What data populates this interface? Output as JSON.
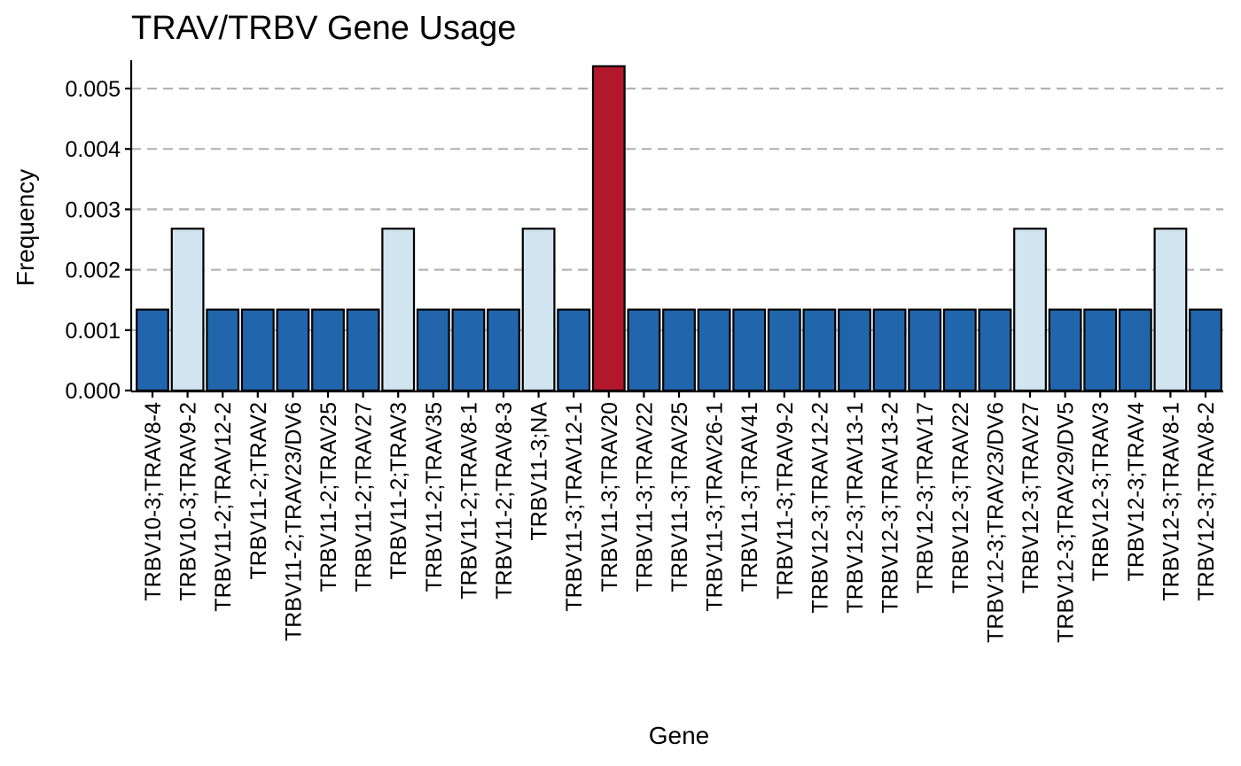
{
  "chart_data": {
    "type": "bar",
    "title": "TRAV/TRBV Gene Usage",
    "xlabel": "Gene",
    "ylabel": "Frequency",
    "ylim": [
      0,
      0.0054
    ],
    "yticks": [
      "0.000",
      "0.001",
      "0.002",
      "0.003",
      "0.004",
      "0.005"
    ],
    "grid": "horizontal dashed",
    "categories": [
      "TRBV10-3;TRAV8-4",
      "TRBV10-3;TRAV9-2",
      "TRBV11-2;TRAV12-2",
      "TRBV11-2;TRAV2",
      "TRBV11-2;TRAV23/DV6",
      "TRBV11-2;TRAV25",
      "TRBV11-2;TRAV27",
      "TRBV11-2;TRAV3",
      "TRBV11-2;TRAV35",
      "TRBV11-2;TRAV8-1",
      "TRBV11-2;TRAV8-3",
      "TRBV11-3;NA",
      "TRBV11-3;TRAV12-1",
      "TRBV11-3;TRAV20",
      "TRBV11-3;TRAV22",
      "TRBV11-3;TRAV25",
      "TRBV11-3;TRAV26-1",
      "TRBV11-3;TRAV41",
      "TRBV11-3;TRAV9-2",
      "TRBV12-3;TRAV12-2",
      "TRBV12-3;TRAV13-1",
      "TRBV12-3;TRAV13-2",
      "TRBV12-3;TRAV17",
      "TRBV12-3;TRAV22",
      "TRBV12-3;TRAV23/DV6",
      "TRBV12-3;TRAV27",
      "TRBV12-3;TRAV29/DV5",
      "TRBV12-3;TRAV3",
      "TRBV12-3;TRAV4",
      "TRBV12-3;TRAV8-1",
      "TRBV12-3;TRAV8-2"
    ],
    "values": [
      0.00134,
      0.00268,
      0.00134,
      0.00134,
      0.00134,
      0.00134,
      0.00134,
      0.00268,
      0.00134,
      0.00134,
      0.00134,
      0.00268,
      0.00134,
      0.00537,
      0.00134,
      0.00134,
      0.00134,
      0.00134,
      0.00134,
      0.00134,
      0.00134,
      0.00134,
      0.00134,
      0.00134,
      0.00134,
      0.00268,
      0.00134,
      0.00134,
      0.00134,
      0.00268,
      0.00134
    ],
    "colors": {
      "low": "#2166ac",
      "mid": "#d1e5f0",
      "high": "#b2182b"
    },
    "legend": "none"
  }
}
